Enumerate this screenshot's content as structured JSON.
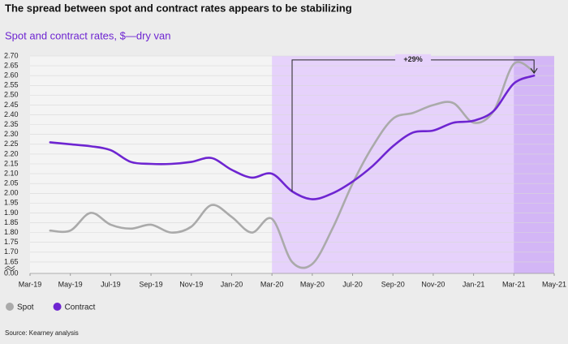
{
  "chart_data": {
    "type": "line",
    "title": "The spread between spot and contract rates appears to be stabilizing",
    "subtitle": "Spot and contract rates, $—dry van",
    "source": "Source: Kearney analysis",
    "x": [
      "2019-04",
      "2019-05",
      "2019-06",
      "2019-07",
      "2019-08",
      "2019-09",
      "2019-10",
      "2019-11",
      "2019-12",
      "2020-01",
      "2020-02",
      "2020-03",
      "2020-04",
      "2020-05",
      "2020-06",
      "2020-07",
      "2020-08",
      "2020-09",
      "2020-10",
      "2020-11",
      "2020-12",
      "2021-01",
      "2021-02",
      "2021-03",
      "2021-04"
    ],
    "series": [
      {
        "name": "Spot",
        "color": "#aaaaaa",
        "values": [
          1.81,
          1.81,
          1.9,
          1.84,
          1.82,
          1.84,
          1.8,
          1.83,
          1.94,
          1.88,
          1.8,
          1.87,
          1.65,
          1.64,
          1.82,
          2.05,
          2.24,
          2.38,
          2.41,
          2.45,
          2.46,
          2.36,
          2.42,
          2.66,
          2.62
        ]
      },
      {
        "name": "Contract",
        "color": "#6e25d1",
        "values": [
          2.26,
          2.25,
          2.24,
          2.22,
          2.16,
          2.15,
          2.15,
          2.16,
          2.18,
          2.12,
          2.08,
          2.1,
          2.01,
          1.97,
          2.0,
          2.06,
          2.14,
          2.24,
          2.31,
          2.32,
          2.36,
          2.37,
          2.42,
          2.56,
          2.6
        ]
      }
    ],
    "xlim": [
      "2019-03",
      "2021-05"
    ],
    "xticks": [
      {
        "value": "2019-03",
        "label": "Mar-19"
      },
      {
        "value": "2019-05",
        "label": "May-19"
      },
      {
        "value": "2019-07",
        "label": "Jul-19"
      },
      {
        "value": "2019-09",
        "label": "Sep-19"
      },
      {
        "value": "2019-11",
        "label": "Nov-19"
      },
      {
        "value": "2020-01",
        "label": "Jan-20"
      },
      {
        "value": "2020-03",
        "label": "Mar-20"
      },
      {
        "value": "2020-05",
        "label": "May-20"
      },
      {
        "value": "2020-07",
        "label": "Jul-20"
      },
      {
        "value": "2020-09",
        "label": "Sep-20"
      },
      {
        "value": "2020-11",
        "label": "Nov-20"
      },
      {
        "value": "2021-01",
        "label": "Jan-21"
      },
      {
        "value": "2021-03",
        "label": "Mar-21"
      },
      {
        "value": "2021-05",
        "label": "May-21"
      }
    ],
    "ylim": [
      0,
      2.7
    ],
    "ybreak": [
      0,
      1.6
    ],
    "yticks": [
      {
        "value": 0,
        "label": "0.00"
      },
      1.65,
      {
        "value": 1.7,
        "label": "1.70"
      },
      1.75,
      {
        "value": 1.8,
        "label": "1.80"
      },
      1.85,
      {
        "value": 1.9,
        "label": "1.90"
      },
      1.95,
      {
        "value": 2.0,
        "label": "2.00"
      },
      2.05,
      {
        "value": 2.1,
        "label": "2.10"
      },
      2.15,
      {
        "value": 2.2,
        "label": "2.20"
      },
      2.25,
      {
        "value": 2.3,
        "label": "2.30"
      },
      2.35,
      {
        "value": 2.4,
        "label": "2.40"
      },
      2.45,
      {
        "value": 2.5,
        "label": "2.50"
      },
      2.55,
      {
        "value": 2.6,
        "label": "2.60"
      },
      2.65,
      {
        "value": 2.7,
        "label": "2.70"
      }
    ],
    "grid": true,
    "highlights": [
      {
        "from": "2020-03",
        "to": "2021-05",
        "color": "#e6d2fb"
      },
      {
        "from": "2021-03",
        "to": "2021-05",
        "color": "#d3b6f6"
      }
    ],
    "annotation": {
      "text": "+29%",
      "from": "2020-04",
      "to": "2021-04",
      "from_value": 2.01,
      "to_value": 2.6,
      "level": 2.68
    },
    "legend": "bottom-left"
  }
}
